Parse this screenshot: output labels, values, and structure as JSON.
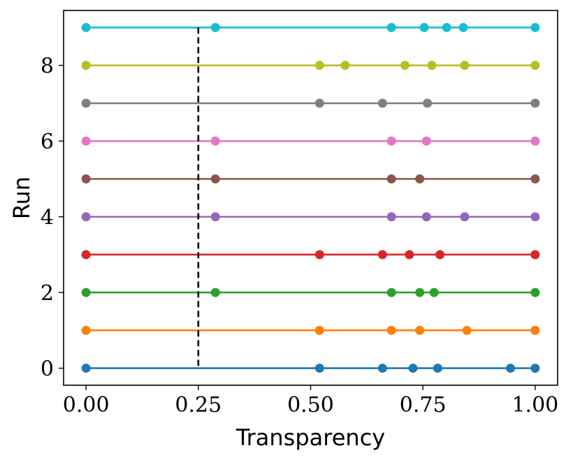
{
  "chart_data": {
    "type": "line",
    "title": "",
    "xlabel": "Transparency",
    "ylabel": "Run",
    "xlim": [
      -0.05,
      1.05
    ],
    "ylim": [
      -0.45,
      9.45
    ],
    "xticks": [
      0.0,
      0.25,
      0.5,
      0.75,
      1.0
    ],
    "xtick_labels": [
      "0.00",
      "0.25",
      "0.50",
      "0.75",
      "1.00"
    ],
    "yticks": [
      0,
      2,
      4,
      6,
      8
    ],
    "ytick_labels": [
      "0",
      "2",
      "4",
      "6",
      "8"
    ],
    "grid": false,
    "legend": "none",
    "threshold_line": {
      "x": 0.25,
      "style": "dashed",
      "color": "#000000"
    },
    "series": [
      {
        "y": 0,
        "color": "#1f77b4",
        "x": [
          0.0,
          0.52,
          0.66,
          0.728,
          0.783,
          0.945,
          1.0
        ]
      },
      {
        "y": 1,
        "color": "#ff7f0e",
        "x": [
          0.0,
          0.52,
          0.68,
          0.743,
          0.848,
          1.0
        ]
      },
      {
        "y": 2,
        "color": "#2ca02c",
        "x": [
          0.0,
          0.288,
          0.68,
          0.743,
          0.775,
          1.0
        ]
      },
      {
        "y": 3,
        "color": "#d62728",
        "x": [
          0.0,
          0.52,
          0.66,
          0.72,
          0.788,
          1.0
        ]
      },
      {
        "y": 4,
        "color": "#9467bd",
        "x": [
          0.0,
          0.288,
          0.68,
          0.758,
          0.843,
          1.0
        ]
      },
      {
        "y": 5,
        "color": "#8c564b",
        "x": [
          0.0,
          0.288,
          0.68,
          0.743,
          1.0
        ]
      },
      {
        "y": 6,
        "color": "#e377c2",
        "x": [
          0.0,
          0.288,
          0.68,
          0.758,
          1.0
        ]
      },
      {
        "y": 7,
        "color": "#7f7f7f",
        "x": [
          0.0,
          0.52,
          0.66,
          0.76,
          1.0
        ]
      },
      {
        "y": 8,
        "color": "#bcbd22",
        "x": [
          0.0,
          0.52,
          0.577,
          0.71,
          0.77,
          0.843,
          1.0
        ]
      },
      {
        "y": 9,
        "color": "#17becf",
        "x": [
          0.0,
          0.288,
          0.68,
          0.753,
          0.803,
          0.84,
          1.0
        ]
      }
    ]
  }
}
